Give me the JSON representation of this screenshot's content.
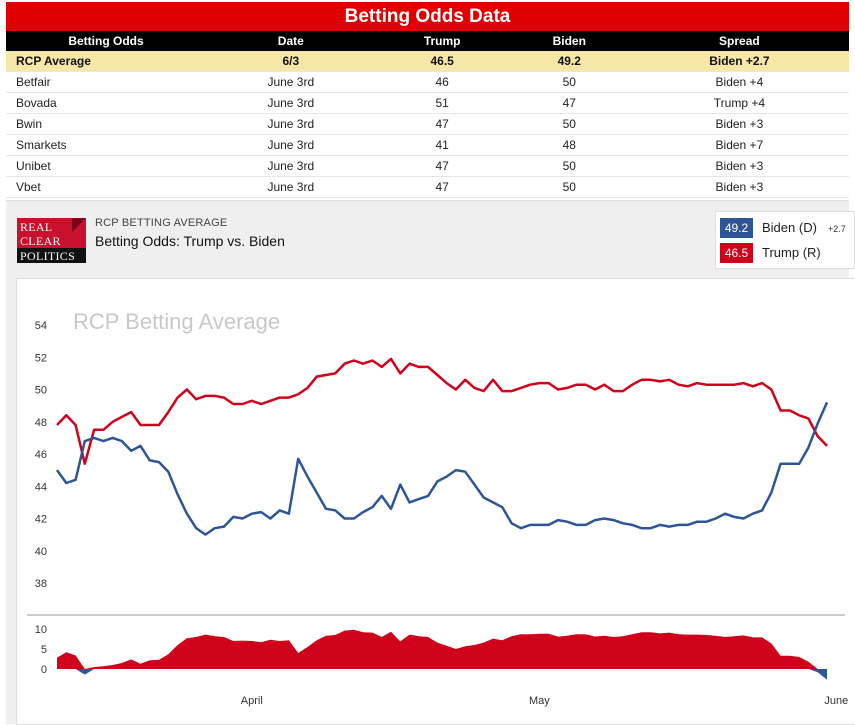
{
  "header": {
    "title": "Betting Odds Data"
  },
  "table": {
    "columns": [
      "Betting Odds",
      "Date",
      "Trump",
      "Biden",
      "Spread"
    ],
    "rows": [
      {
        "name": "RCP Average",
        "date": "6/3",
        "trump": "46.5",
        "biden": "49.2",
        "spread": "Biden +2.7",
        "leader": "biden"
      },
      {
        "name": "Betfair",
        "date": "June 3rd",
        "trump": "46",
        "biden": "50",
        "spread": "Biden +4",
        "leader": "biden"
      },
      {
        "name": "Bovada",
        "date": "June 3rd",
        "trump": "51",
        "biden": "47",
        "spread": "Trump +4",
        "leader": "trump"
      },
      {
        "name": "Bwin",
        "date": "June 3rd",
        "trump": "47",
        "biden": "50",
        "spread": "Biden +3",
        "leader": "biden"
      },
      {
        "name": "Smarkets",
        "date": "June 3rd",
        "trump": "41",
        "biden": "48",
        "spread": "Biden +7",
        "leader": "biden"
      },
      {
        "name": "Unibet",
        "date": "June 3rd",
        "trump": "47",
        "biden": "50",
        "spread": "Biden +3",
        "leader": "biden"
      },
      {
        "name": "Vbet",
        "date": "June 3rd",
        "trump": "47",
        "biden": "50",
        "spread": "Biden +3",
        "leader": "biden"
      }
    ]
  },
  "logo": {
    "line1": "REAL",
    "line2": "CLEAR",
    "line3": "POLITICS"
  },
  "chart_header": {
    "subtitle": "RCP BETTING AVERAGE",
    "title": "Betting Odds: Trump vs. Biden"
  },
  "legend": {
    "biden": {
      "value": "49.2",
      "label": "Biden (D)",
      "delta": "+2.7"
    },
    "trump": {
      "value": "46.5",
      "label": "Trump (R)"
    }
  },
  "colors": {
    "biden": "#2f5597",
    "trump": "#d0021b",
    "title_bar": "#e00000"
  },
  "chart_data": {
    "type": "line",
    "watermark": "RCP Betting Average",
    "ylim": [
      37,
      55
    ],
    "yticks": [
      38,
      40,
      42,
      44,
      46,
      48,
      50,
      52,
      54
    ],
    "spread_ylim": [
      -2,
      12
    ],
    "spread_yticks": [
      0,
      5,
      10
    ],
    "x_labels": [
      {
        "label": "April",
        "index": 21
      },
      {
        "label": "May",
        "index": 52
      },
      {
        "label": "June",
        "index": 84
      }
    ],
    "series": [
      {
        "name": "Trump",
        "color": "#d0021b",
        "values": [
          47.8,
          48.4,
          47.8,
          45.4,
          47.5,
          47.5,
          48.0,
          48.3,
          48.6,
          47.8,
          47.8,
          47.8,
          48.6,
          49.5,
          50.0,
          49.4,
          49.6,
          49.6,
          49.5,
          49.1,
          49.1,
          49.3,
          49.1,
          49.3,
          49.5,
          49.5,
          49.7,
          50.1,
          50.8,
          50.9,
          51.0,
          51.6,
          51.8,
          51.6,
          51.8,
          51.4,
          51.9,
          51.0,
          51.6,
          51.4,
          51.4,
          50.9,
          50.4,
          50.0,
          50.6,
          50.1,
          49.9,
          50.6,
          49.9,
          49.9,
          50.1,
          50.3,
          50.4,
          50.4,
          50.0,
          50.1,
          50.3,
          50.3,
          50.0,
          50.3,
          49.9,
          49.9,
          50.3,
          50.6,
          50.6,
          50.5,
          50.6,
          50.3,
          50.2,
          50.4,
          50.3,
          50.3,
          50.3,
          50.3,
          50.4,
          50.2,
          50.4,
          50.0,
          48.7,
          48.7,
          48.4,
          48.2,
          47.1,
          46.5
        ]
      },
      {
        "name": "Biden",
        "color": "#2f5597",
        "values": [
          45.0,
          44.2,
          44.4,
          46.8,
          47.0,
          46.8,
          47.0,
          46.8,
          46.2,
          46.5,
          45.6,
          45.5,
          44.9,
          43.5,
          42.3,
          41.4,
          41.0,
          41.4,
          41.5,
          42.1,
          42.0,
          42.3,
          42.4,
          42.0,
          42.5,
          42.3,
          45.7,
          44.6,
          43.6,
          42.6,
          42.5,
          42.0,
          42.0,
          42.4,
          42.7,
          43.4,
          42.6,
          44.1,
          43.0,
          43.2,
          43.4,
          44.3,
          44.6,
          45.0,
          44.9,
          44.1,
          43.3,
          43.0,
          42.7,
          41.7,
          41.4,
          41.6,
          41.6,
          41.6,
          41.9,
          41.8,
          41.6,
          41.6,
          41.9,
          42.0,
          41.9,
          41.7,
          41.6,
          41.4,
          41.4,
          41.6,
          41.5,
          41.6,
          41.6,
          41.8,
          41.8,
          42.0,
          42.3,
          42.1,
          42.0,
          42.3,
          42.5,
          43.6,
          45.4,
          45.4,
          45.4,
          46.4,
          47.9,
          49.2
        ]
      }
    ]
  }
}
